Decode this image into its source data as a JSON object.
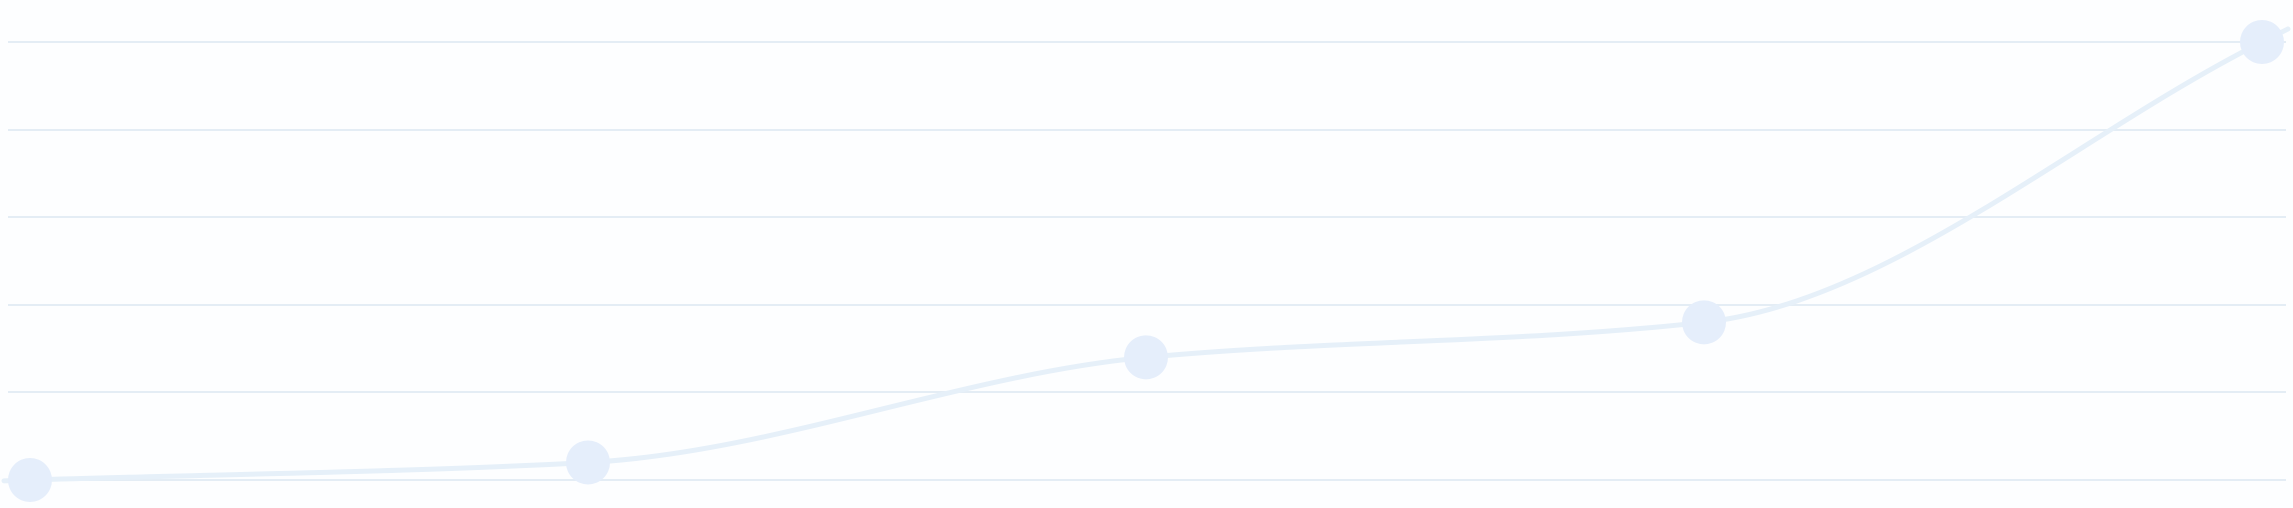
{
  "chart_data": {
    "type": "line",
    "title": "",
    "xlabel": "",
    "ylabel": "",
    "smooth": true,
    "grid": true,
    "gridline_count": 6,
    "ylim": [
      0,
      5
    ],
    "x": [
      0,
      1,
      2,
      3,
      4
    ],
    "series": [
      {
        "values": [
          0.0,
          0.2,
          1.4,
          1.8,
          5.0
        ],
        "line_color": "#e6f0f9",
        "point_color": "#e5eefb"
      }
    ]
  },
  "colors": {
    "background": "#fdfeff",
    "grid": "#e4edf5"
  }
}
